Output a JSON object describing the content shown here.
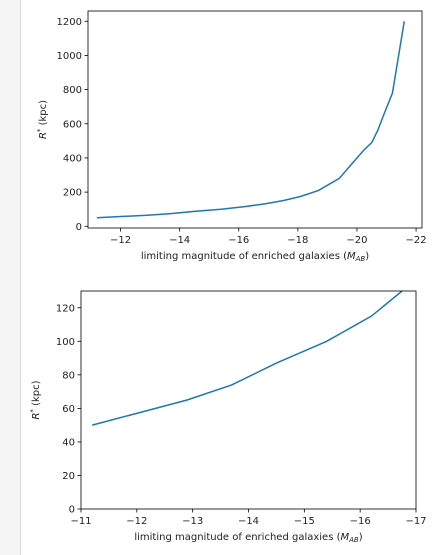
{
  "chart_data": [
    {
      "type": "line",
      "title": "",
      "xlabel_main": "limiting magnitude of enriched galaxies (",
      "xlabel_sub": "AB",
      "xlabel_end": ")",
      "xlabel_var": "M",
      "ylabel_main": "R",
      "ylabel_sup": "*",
      "ylabel_unit": " (kpc)",
      "xlim": [
        -10.9,
        -22.2
      ],
      "ylim": [
        -10,
        1260
      ],
      "xticks": [
        -12,
        -14,
        -16,
        -18,
        -20,
        -22
      ],
      "xtick_labels": [
        "−12",
        "−14",
        "−16",
        "−18",
        "−20",
        "−22"
      ],
      "yticks": [
        0,
        200,
        400,
        600,
        800,
        1000,
        1200
      ],
      "ytick_labels": [
        "0",
        "200",
        "400",
        "600",
        "800",
        "1000",
        "1200"
      ],
      "grid": false,
      "series": [
        {
          "color": "#1f77b4",
          "x": [
            -11.2,
            -12.9,
            -13.7,
            -14.5,
            -15.4,
            -16.2,
            -16.9,
            -17.5,
            -18.1,
            -18.7,
            -19.4,
            -19.8,
            -20.2,
            -20.5,
            -20.7,
            -20.9,
            -21.2,
            -21.6
          ],
          "y": [
            50,
            65,
            74,
            87,
            100,
            115,
            132,
            150,
            175,
            210,
            280,
            360,
            440,
            490,
            560,
            650,
            780,
            1200
          ]
        }
      ]
    },
    {
      "type": "line",
      "title": "",
      "xlabel_main": "limiting magnitude of enriched galaxies (",
      "xlabel_sub": "AB",
      "xlabel_end": ")",
      "xlabel_var": "M",
      "ylabel_main": "R",
      "ylabel_sup": "*",
      "ylabel_unit": " (kpc)",
      "xlim": [
        -11,
        -17
      ],
      "ylim": [
        0,
        130
      ],
      "xticks": [
        -11,
        -12,
        -13,
        -14,
        -15,
        -16,
        -17
      ],
      "xtick_labels": [
        "−11",
        "−12",
        "−13",
        "−14",
        "−15",
        "−16",
        "−17"
      ],
      "yticks": [
        0,
        20,
        40,
        60,
        80,
        100,
        120
      ],
      "ytick_labels": [
        "0",
        "20",
        "40",
        "60",
        "80",
        "100",
        "120"
      ],
      "grid": false,
      "series": [
        {
          "color": "#1f77b4",
          "x": [
            -11.2,
            -12.9,
            -13.7,
            -14.5,
            -15.4,
            -16.2,
            -16.75
          ],
          "y": [
            50,
            65,
            74,
            87,
            100,
            115,
            130
          ]
        }
      ]
    }
  ]
}
